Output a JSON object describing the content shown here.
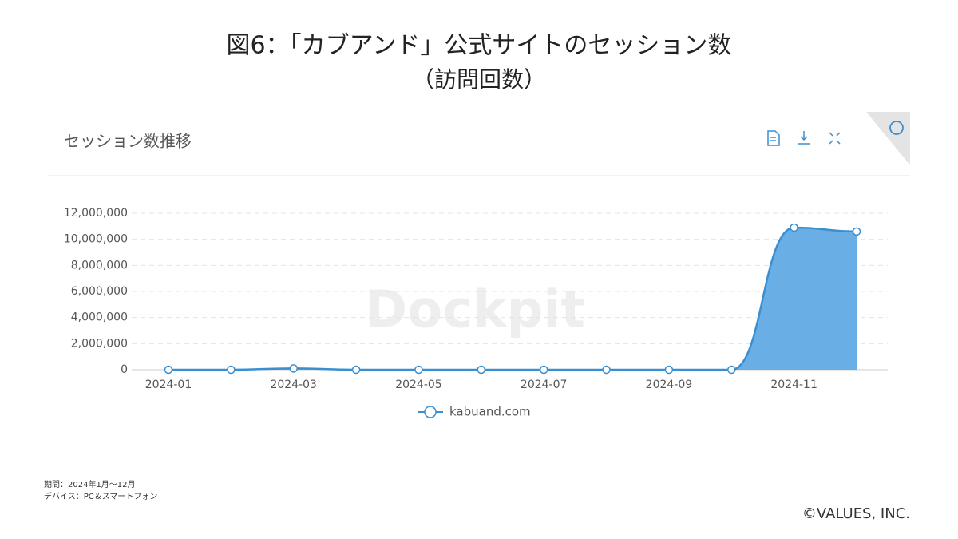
{
  "chart_data": {
    "type": "area",
    "title": "図6：「カブアンド」公式サイトのセッション数",
    "subtitle": "（訪問回数）",
    "panel_title": "セッション数推移",
    "watermark": "Dockpit",
    "categories": [
      "2024-01",
      null,
      "2024-03",
      null,
      "2024-05",
      null,
      "2024-07",
      null,
      "2024-09",
      null,
      "2024-11",
      null
    ],
    "series": [
      {
        "name": "kabuand.com",
        "color": "#3a8fd0",
        "fill": "#6aaee6",
        "values": [
          0,
          0,
          100000,
          0,
          0,
          0,
          0,
          0,
          0,
          0,
          10900000,
          10600000
        ]
      }
    ],
    "ylim": [
      0,
      12000000
    ],
    "yticks": [
      0,
      {
        "value": 2000000,
        "label": "2,000,000"
      },
      {
        "value": 4000000,
        "label": "4,000,000"
      },
      {
        "value": 6000000,
        "label": "6,000,000"
      },
      {
        "value": 8000000,
        "label": "8,000,000"
      },
      {
        "value": 10000000,
        "label": "10,000,000"
      },
      {
        "value": 12000000,
        "label": "12,000,000"
      }
    ],
    "grid": true,
    "notes": [
      "期間：2024年1月～12月",
      "デバイス：PC＆スマートフォン"
    ],
    "copyright": "©VALUES, INC."
  }
}
